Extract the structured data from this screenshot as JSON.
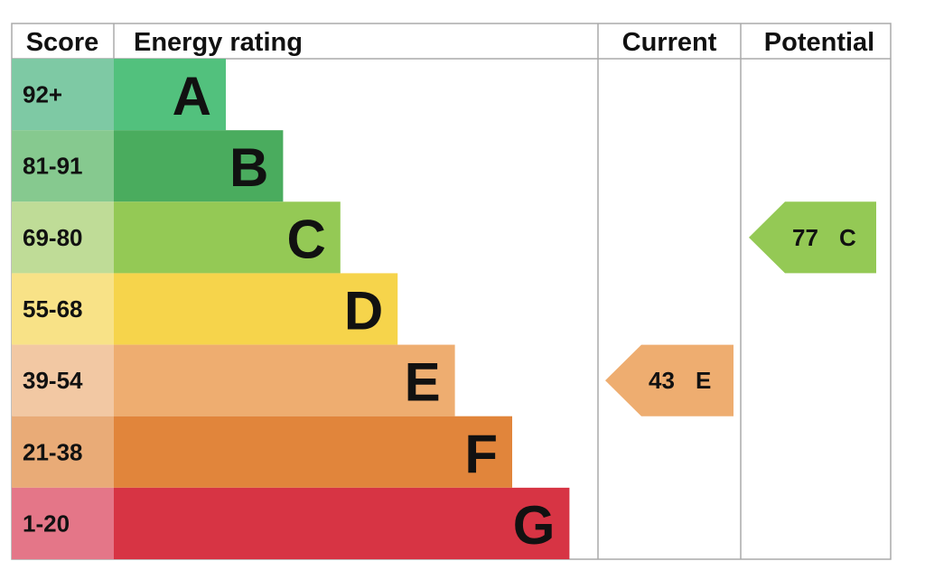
{
  "header": {
    "score": "Score",
    "energy_rating": "Energy rating",
    "current": "Current",
    "potential": "Potential"
  },
  "rows": [
    {
      "score": "92+",
      "band": "A"
    },
    {
      "score": "81-91",
      "band": "B"
    },
    {
      "score": "69-80",
      "band": "C"
    },
    {
      "score": "55-68",
      "band": "D"
    },
    {
      "score": "39-54",
      "band": "E"
    },
    {
      "score": "21-38",
      "band": "F"
    },
    {
      "score": "1-20",
      "band": "G"
    }
  ],
  "current": {
    "value": 43,
    "band": "E"
  },
  "potential": {
    "value": 77,
    "band": "C"
  }
}
